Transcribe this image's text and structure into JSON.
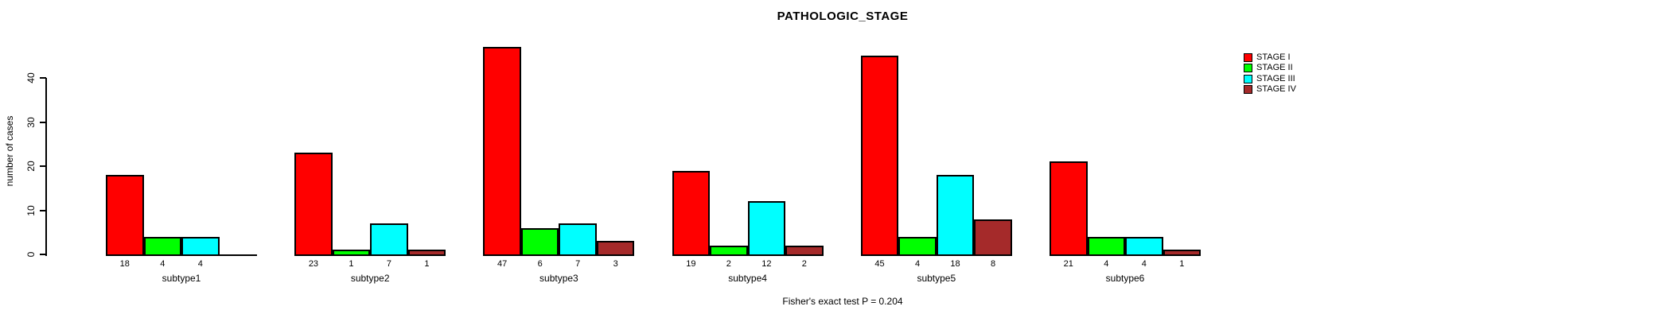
{
  "title": "PATHOLOGIC_STAGE",
  "footer": "Fisher's exact test P = 0.204",
  "y_axis": {
    "label": "number of cases",
    "ticks": [
      0,
      10,
      20,
      30,
      40
    ]
  },
  "legend": {
    "position": "right",
    "items": [
      {
        "label": "STAGE I",
        "color": "#FF0000"
      },
      {
        "label": "STAGE II",
        "color": "#00FF00"
      },
      {
        "label": "STAGE III",
        "color": "#00FFFF"
      },
      {
        "label": "STAGE IV",
        "color": "#A52A2A"
      }
    ]
  },
  "chart_data": {
    "type": "bar",
    "title": "PATHOLOGIC_STAGE",
    "xlabel": "",
    "ylabel": "number of cases",
    "ylim": [
      0,
      47
    ],
    "yticks": [
      0,
      10,
      20,
      30,
      40
    ],
    "grid": false,
    "legend_position": "right",
    "annotation": "Fisher's exact test P = 0.204",
    "categories": [
      "subtype1",
      "subtype2",
      "subtype3",
      "subtype4",
      "subtype5",
      "subtype6"
    ],
    "series": [
      {
        "name": "STAGE I",
        "color": "#FF0000",
        "values": [
          18,
          23,
          47,
          19,
          45,
          21
        ]
      },
      {
        "name": "STAGE II",
        "color": "#00FF00",
        "values": [
          4,
          1,
          6,
          2,
          4,
          4
        ]
      },
      {
        "name": "STAGE III",
        "color": "#00FFFF",
        "values": [
          4,
          7,
          7,
          12,
          18,
          4
        ]
      },
      {
        "name": "STAGE IV",
        "color": "#A52A2A",
        "values": [
          0,
          1,
          3,
          2,
          8,
          1
        ]
      }
    ],
    "bar_value_labels_shown": true,
    "zero_values_unlabeled": true
  }
}
